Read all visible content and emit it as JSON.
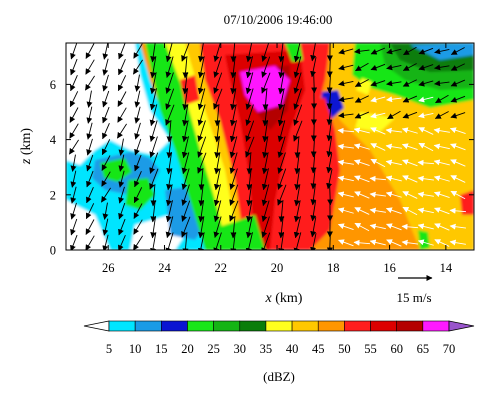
{
  "chart_data": {
    "type": "heatmap",
    "title": "07/10/2006 19:46:00",
    "xlabel_var": "x",
    "xlabel_unit": " (km)",
    "ylabel_var": "z",
    "ylabel_unit": " (km)",
    "x_ticks": [
      26,
      24,
      22,
      20,
      18,
      16,
      14
    ],
    "y_ticks": [
      0,
      2,
      4,
      6
    ],
    "xlim": [
      27.5,
      13
    ],
    "ylim": [
      0,
      7.5
    ],
    "vector_reference": {
      "speed": 15,
      "label": "15 m/s"
    },
    "colorbar": {
      "label": "(dBZ)",
      "ticks": [
        5,
        10,
        15,
        20,
        25,
        30,
        35,
        40,
        45,
        50,
        55,
        60,
        65,
        70
      ],
      "colors": [
        "#ffffff",
        "#00e5ff",
        "#1a9be6",
        "#0a14d2",
        "#19e619",
        "#14b414",
        "#0a7d0a",
        "#ffff1e",
        "#ffc800",
        "#ff9600",
        "#ff1e1e",
        "#dc0000",
        "#b40000",
        "#ff19ff",
        "#9955cc"
      ]
    },
    "reflectivity_regions_dbz": [
      {
        "x": [
          27.5,
          25.5
        ],
        "z": [
          0,
          7.5
        ],
        "dbz": "< 5"
      },
      {
        "x": [
          26.5,
          25.0
        ],
        "z": [
          1.5,
          2.8
        ],
        "dbz": "25-35"
      },
      {
        "x": [
          22.5,
          20.0
        ],
        "z": [
          0,
          7.5
        ],
        "dbz": "45-55"
      },
      {
        "x": [
          21.2,
          20.2
        ],
        "z": [
          5.0,
          6.9
        ],
        "dbz": "65-70"
      },
      {
        "x": [
          17.5,
          13.0
        ],
        "z": [
          0,
          4.5
        ],
        "dbz": "40-50"
      },
      {
        "x": [
          17.5,
          13.0
        ],
        "z": [
          5.0,
          7.5
        ],
        "dbz": "25-35"
      }
    ]
  }
}
